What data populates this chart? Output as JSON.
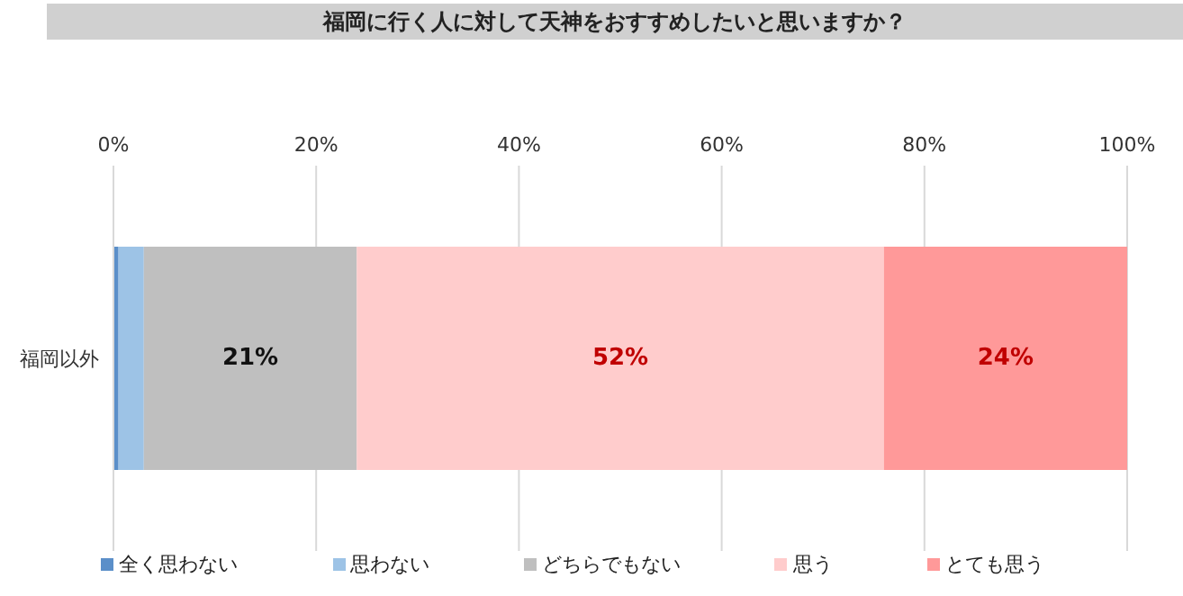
{
  "chart_data": {
    "type": "bar",
    "orientation": "horizontal",
    "stacked": true,
    "title": "福岡に行く人に対して天神をおすすめしたいと思いますか？",
    "categories": [
      "福岡以外"
    ],
    "series": [
      {
        "name": "全く思わない",
        "color": "#5b8fc9",
        "values": [
          0.5
        ]
      },
      {
        "name": "思わない",
        "color": "#9dc3e6",
        "values": [
          2.5
        ]
      },
      {
        "name": "どちらでもない",
        "color": "#bfbfbf",
        "values": [
          21
        ],
        "value_labels": [
          "21%"
        ]
      },
      {
        "name": "思う",
        "color": "#ffcccc",
        "values": [
          52
        ],
        "value_labels": [
          "52%"
        ]
      },
      {
        "name": "とても思う",
        "color": "#ff9999",
        "values": [
          24
        ],
        "value_labels": [
          "24%"
        ]
      }
    ],
    "xlim": [
      0,
      100
    ],
    "xticks": [
      {
        "value": 0,
        "label": "0%"
      },
      {
        "value": 20,
        "label": "20%"
      },
      {
        "value": 40,
        "label": "40%"
      },
      {
        "value": 60,
        "label": "60%"
      },
      {
        "value": 80,
        "label": "80%"
      },
      {
        "value": 100,
        "label": "100%"
      }
    ],
    "grid": "x",
    "legend": "bottom"
  }
}
